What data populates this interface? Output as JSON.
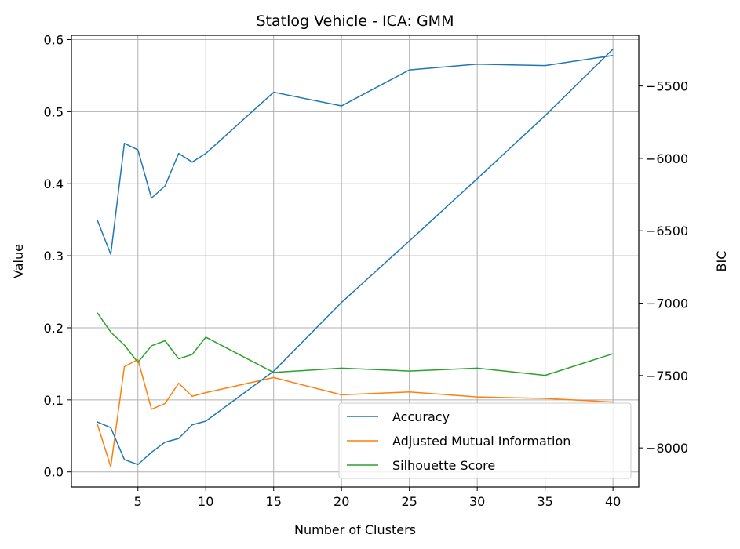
{
  "chart_data": {
    "type": "line",
    "title": "Statlog Vehicle - ICA: GMM",
    "xlabel": "Number of Clusters",
    "ylabel": "Value",
    "y2label": "BIC",
    "xlim": [
      0.1,
      41.9
    ],
    "ylim": [
      -0.021,
      0.606
    ],
    "y2lim": [
      -8270,
      -5150
    ],
    "x_ticks": [
      5,
      10,
      15,
      20,
      25,
      30,
      35,
      40
    ],
    "y_ticks": [
      0.0,
      0.1,
      0.2,
      0.3,
      0.4,
      0.5,
      0.6
    ],
    "y_tick_labels": [
      "0.0",
      "0.1",
      "0.2",
      "0.3",
      "0.4",
      "0.5",
      "0.6"
    ],
    "y2_ticks": [
      -8000,
      -7500,
      -7000,
      -6500,
      -6000,
      -5500
    ],
    "y2_tick_labels": [
      "−8000",
      "−7500",
      "−7000",
      "−6500",
      "−6000",
      "−5500"
    ],
    "grid": true,
    "legend_position": "lower-right",
    "series": [
      {
        "name": "Accuracy",
        "color": "#1f77b4",
        "axis": "left",
        "x": [
          2,
          3,
          4,
          5,
          6,
          7,
          8,
          9,
          10,
          15,
          20,
          25,
          30,
          35,
          40
        ],
        "values": [
          0.35,
          0.302,
          0.456,
          0.447,
          0.38,
          0.397,
          0.442,
          0.43,
          0.442,
          0.527,
          0.508,
          0.558,
          0.566,
          0.564,
          0.578
        ]
      },
      {
        "name": "Adjusted Mutual Information",
        "color": "#ff7f0e",
        "axis": "left",
        "x": [
          2,
          3,
          4,
          5,
          6,
          7,
          8,
          9,
          10,
          15,
          20,
          25,
          30,
          35,
          40
        ],
        "values": [
          0.067,
          0.007,
          0.146,
          0.156,
          0.087,
          0.095,
          0.123,
          0.105,
          0.11,
          0.131,
          0.107,
          0.111,
          0.104,
          0.102,
          0.097
        ]
      },
      {
        "name": "Silhouette Score",
        "color": "#2ca02c",
        "axis": "left",
        "x": [
          2,
          3,
          4,
          5,
          6,
          7,
          8,
          9,
          10,
          15,
          20,
          25,
          30,
          35,
          40
        ],
        "values": [
          0.221,
          0.194,
          0.176,
          0.152,
          0.175,
          0.182,
          0.157,
          0.163,
          0.187,
          0.138,
          0.144,
          0.14,
          0.144,
          0.134,
          0.164
        ]
      },
      {
        "color": "#1f77b4",
        "axis": "right",
        "x": [
          2,
          3,
          4,
          5,
          6,
          7,
          8,
          9,
          10,
          15,
          20,
          25,
          30,
          35,
          40
        ],
        "values": [
          -7820,
          -7860,
          -8080,
          -8115,
          -8030,
          -7960,
          -7935,
          -7840,
          -7815,
          -7470,
          -6995,
          -6570,
          -6140,
          -5705,
          -5245
        ]
      }
    ]
  }
}
